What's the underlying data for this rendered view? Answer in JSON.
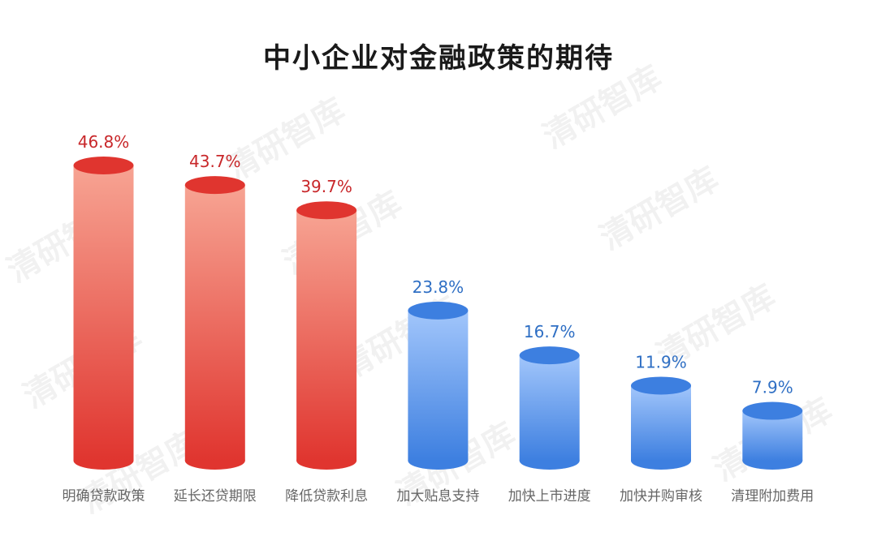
{
  "watermark_text": "清研智库",
  "chart_data": {
    "type": "bar",
    "title": "中小企业对金融政策的期待",
    "xlabel": "",
    "ylabel": "",
    "categories": [
      "明确贷款政策",
      "延长还贷期限",
      "降低贷款利息",
      "加大贴息支持",
      "加快上市进度",
      "加快并购审核",
      "清理附加费用"
    ],
    "values": [
      46.8,
      43.7,
      39.7,
      23.8,
      16.7,
      11.9,
      7.9
    ],
    "value_labels": [
      "46.8%",
      "43.7%",
      "39.7%",
      "23.8%",
      "16.7%",
      "11.9%",
      "7.9%"
    ],
    "unit": "%",
    "ylim": [
      0,
      46.8
    ],
    "grid": false,
    "legend": "none",
    "bar_style": "cylinder",
    "colors": {
      "high_group": "#e0352f",
      "high_group_light": "#f7a493",
      "high_group_label": "#c8272a",
      "low_group": "#3d7fe0",
      "low_group_light": "#a2c6fb",
      "low_group_label": "#2f6fc4",
      "category_label": "#666666"
    },
    "high_group_indices": [
      0,
      1,
      2
    ]
  }
}
